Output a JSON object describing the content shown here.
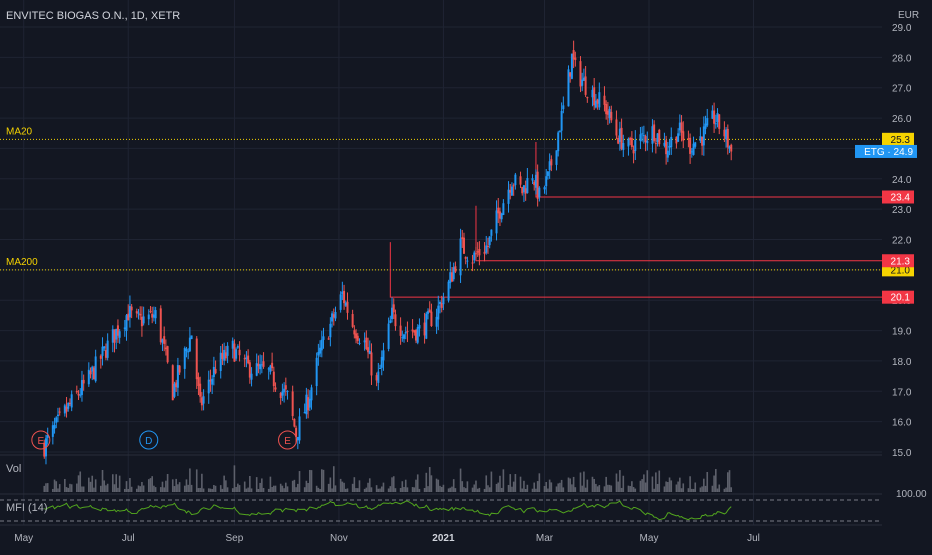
{
  "header": {
    "title": "ENVITEC BIOGAS O.N., 1D, XETR",
    "currency": "EUR"
  },
  "colors": {
    "background": "#131722",
    "grid": "#1f2433",
    "text": "#b2b5be",
    "up": "#2196f3",
    "down": "#ef5350",
    "ma": "#f5d300",
    "level": "#f23645",
    "ticker_badge": "#2196f3",
    "mfi": "#52a51e"
  },
  "chart_data": {
    "type": "candlestick",
    "price_axis": {
      "ticks": [
        "29.0",
        "28.0",
        "27.0",
        "26.0",
        "25.0",
        "24.0",
        "23.0",
        "22.0",
        "21.0",
        "20.0",
        "19.0",
        "18.0",
        "17.0",
        "16.0",
        "15.0"
      ],
      "ylim": [
        15.0,
        29.0
      ]
    },
    "time_axis": {
      "ticks": [
        "May",
        "Jul",
        "Sep",
        "Nov",
        "2021",
        "Mar",
        "May",
        "Jul"
      ],
      "bold_tick": "2021"
    },
    "ticker": {
      "label": "ETG",
      "value": "24.9"
    },
    "moving_averages": [
      {
        "name": "MA20",
        "value": 25.3,
        "label": "25.3"
      },
      {
        "name": "MA200",
        "value": 21.0,
        "label": "21.0"
      }
    ],
    "horizontal_levels": [
      {
        "value": 23.4,
        "label": "23.4",
        "start_date": "Feb 24 2021"
      },
      {
        "value": 21.3,
        "label": "21.3",
        "start_date": "Jan 20 2021"
      },
      {
        "value": 20.1,
        "label": "20.1",
        "start_date": "Dec 1 2020"
      }
    ],
    "event_markers": [
      {
        "letter": "E",
        "date": "May 11 2020",
        "kind": "earnings"
      },
      {
        "letter": "D",
        "date": "Jul 13 2020",
        "kind": "dividend"
      },
      {
        "letter": "E",
        "date": "Oct 2 2020",
        "kind": "earnings"
      }
    ],
    "price_path": [
      {
        "date": "May 13 2020",
        "close": 15.2
      },
      {
        "date": "May 25 2020",
        "close": 16.3
      },
      {
        "date": "Jun 8 2020",
        "close": 17.4
      },
      {
        "date": "Jun 19 2020",
        "close": 18.5
      },
      {
        "date": "Jul 1 2020",
        "close": 19.6
      },
      {
        "date": "Jul 6 2020",
        "close": 19.3
      },
      {
        "date": "Jul 17 2020",
        "close": 19.5
      },
      {
        "date": "Jul 21 2020",
        "close": 18.6
      },
      {
        "date": "Jul 27 2020",
        "close": 17.0
      },
      {
        "date": "Aug 7 2020",
        "close": 18.9
      },
      {
        "date": "Aug 12 2020",
        "close": 16.5
      },
      {
        "date": "Aug 21 2020",
        "close": 17.8
      },
      {
        "date": "Aug 31 2020",
        "close": 18.4
      },
      {
        "date": "Sep 8 2020",
        "close": 17.8
      },
      {
        "date": "Sep 21 2020",
        "close": 17.6
      },
      {
        "date": "Oct 2 2020",
        "close": 16.8
      },
      {
        "date": "Oct 7 2020",
        "close": 15.6
      },
      {
        "date": "Oct 14 2020",
        "close": 16.7
      },
      {
        "date": "Oct 21 2020",
        "close": 18.3
      },
      {
        "date": "Oct 30 2020",
        "close": 19.6
      },
      {
        "date": "Nov 3 2020",
        "close": 20.2
      },
      {
        "date": "Nov 9 2020",
        "close": 19.2
      },
      {
        "date": "Nov 16 2020",
        "close": 18.6
      },
      {
        "date": "Nov 23 2020",
        "close": 17.2
      },
      {
        "date": "Dec 2 2020",
        "close": 19.5
      },
      {
        "date": "Dec 9 2020",
        "close": 19.0
      },
      {
        "date": "Dec 18 2020",
        "close": 19.0
      },
      {
        "date": "Dec 28 2020",
        "close": 19.6
      },
      {
        "date": "Jan 4 2021",
        "close": 20.5
      },
      {
        "date": "Jan 11 2021",
        "close": 21.8
      },
      {
        "date": "Jan 18 2021",
        "close": 21.4
      },
      {
        "date": "Jan 27 2021",
        "close": 21.8
      },
      {
        "date": "Feb 3 2021",
        "close": 23.0
      },
      {
        "date": "Feb 10 2021",
        "close": 24.0
      },
      {
        "date": "Feb 16 2021",
        "close": 23.6
      },
      {
        "date": "Feb 22 2021",
        "close": 24.2
      },
      {
        "date": "Feb 26 2021",
        "close": 23.4
      },
      {
        "date": "Mar 3 2021",
        "close": 24.0
      },
      {
        "date": "Mar 12 2021",
        "close": 26.3
      },
      {
        "date": "Mar 17 2021",
        "close": 28.0
      },
      {
        "date": "Mar 19 2021",
        "close": 27.6
      },
      {
        "date": "Mar 26 2021",
        "close": 27.0
      },
      {
        "date": "Apr 6 2021",
        "close": 26.3
      },
      {
        "date": "Apr 12 2021",
        "close": 25.5
      },
      {
        "date": "Apr 19 2021",
        "close": 25.0
      },
      {
        "date": "Apr 26 2021",
        "close": 25.3
      },
      {
        "date": "May 4 2021",
        "close": 25.6
      },
      {
        "date": "May 11 2021",
        "close": 25.0
      },
      {
        "date": "May 18 2021",
        "close": 25.6
      },
      {
        "date": "May 25 2021",
        "close": 25.1
      },
      {
        "date": "Jun 1 2021",
        "close": 25.4
      },
      {
        "date": "Jun 8 2021",
        "close": 26.0
      },
      {
        "date": "Jun 14 2021",
        "close": 25.5
      },
      {
        "date": "Jun 18 2021",
        "close": 24.9
      }
    ],
    "volume": {
      "label": "Vol"
    },
    "mfi": {
      "label": "MFI (14)",
      "upper_tick": "100.00"
    }
  }
}
